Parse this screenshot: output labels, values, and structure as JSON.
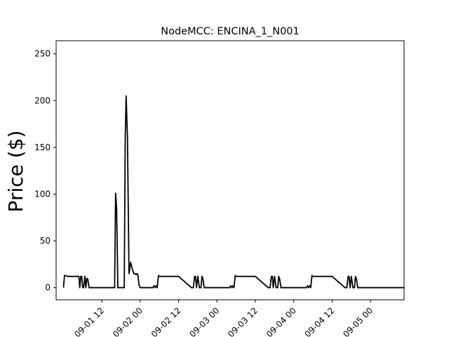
{
  "chart_data": {
    "type": "line",
    "title": "NodeMCC: ENCINA_1_N001",
    "xlabel": "",
    "ylabel": "Price ($)",
    "ylim": [
      -13,
      264
    ],
    "yticks": [
      0,
      50,
      100,
      150,
      200,
      250
    ],
    "xticks": [
      {
        "label": "09-01 12",
        "hour": 12
      },
      {
        "label": "09-02 00",
        "hour": 24
      },
      {
        "label": "09-02 12",
        "hour": 36
      },
      {
        "label": "09-03 00",
        "hour": 48
      },
      {
        "label": "09-03 12",
        "hour": 60
      },
      {
        "label": "09-04 00",
        "hour": 72
      },
      {
        "label": "09-04 12",
        "hour": 84
      },
      {
        "label": "09-05 00",
        "hour": 96
      }
    ],
    "xlim_hours": [
      -2.3,
      106.5
    ],
    "grid": false,
    "series": [
      {
        "color": "#000000",
        "hour": [
          0,
          0.3,
          1.5,
          3.5,
          4.8,
          5.1,
          5.4,
          5.7,
          6.0,
          6.3,
          6.7,
          7.0,
          7.3,
          7.6,
          8.0,
          12.0,
          16.0,
          16.3,
          16.6,
          17.0,
          17.3,
          17.6,
          18.0,
          18.5,
          19.0,
          19.3,
          19.6,
          20.0,
          20.5,
          21.0,
          21.5,
          22.0,
          22.3,
          22.6,
          23.0,
          23.3,
          23.6,
          24.0,
          25.0,
          26.0,
          26.5,
          27.0,
          28.0,
          28.3,
          28.7,
          29.0,
          29.3,
          29.7,
          30.0,
          30.5,
          31.0,
          32.0,
          36.0,
          40.0,
          40.3,
          40.6,
          41.0,
          41.3,
          41.6,
          42.0,
          42.5,
          43.0,
          43.3,
          43.6,
          44.0,
          44.5,
          45.0,
          45.5,
          46.0,
          46.3,
          46.6,
          47.0,
          47.3,
          47.6,
          48.0,
          49.0,
          50.0,
          50.5,
          51.0,
          52.0,
          52.3,
          52.7,
          53.0,
          53.3,
          53.7,
          54.0,
          54.5,
          55.0,
          56.0,
          60.0,
          64.0,
          64.3,
          64.6,
          65.0,
          65.3,
          65.6,
          66.0,
          66.5,
          67.0,
          67.3,
          67.6,
          68.0,
          68.5,
          69.0,
          69.5,
          70.0,
          70.3,
          70.6,
          71.0,
          71.3,
          71.6,
          72.0,
          73.0,
          74.0,
          74.5,
          75.0,
          76.0,
          76.3,
          76.7,
          77.0,
          77.3,
          77.7,
          78.0,
          78.5,
          79.0,
          80.0,
          84.0,
          88.0,
          88.3,
          88.6,
          89.0,
          89.3,
          89.6,
          90.0,
          90.5,
          91.0,
          91.3,
          91.6,
          92.0,
          92.5,
          93.0,
          93.5,
          94.0,
          94.3,
          94.6,
          95.0,
          95.3,
          95.6,
          96.0,
          97.0,
          98.0,
          98.5,
          99.0,
          99.5,
          100.0,
          100.5,
          101.0,
          101.3,
          101.6,
          102.0,
          102.5,
          103.0,
          104.5,
          105.5,
          105.8,
          106.2,
          106.5
        ],
        "value": [
          0,
          13,
          12,
          12,
          12,
          0,
          12,
          12,
          0,
          0,
          12,
          0,
          10,
          9,
          0,
          0,
          0,
          101,
          85,
          0,
          0,
          0,
          0,
          0,
          0,
          160,
          205,
          160,
          15,
          27,
          20,
          15,
          15,
          14,
          15,
          13,
          3,
          0,
          0,
          0,
          0,
          0,
          0,
          2,
          0,
          2,
          0,
          13,
          12,
          12,
          12,
          12,
          12,
          0,
          0,
          0,
          12,
          12,
          0,
          12,
          0,
          0,
          12,
          9,
          0,
          0,
          0,
          0,
          0,
          0,
          0,
          0,
          0,
          0,
          0,
          0,
          0,
          0,
          0,
          0,
          2,
          0,
          2,
          0,
          13,
          12,
          12,
          12,
          12,
          12,
          0,
          0,
          0,
          12,
          12,
          0,
          12,
          0,
          0,
          12,
          9,
          0,
          0,
          0,
          0,
          0,
          0,
          0,
          0,
          0,
          0,
          0,
          0,
          0,
          0,
          0,
          0,
          2,
          0,
          2,
          0,
          13,
          12,
          12,
          12,
          12,
          12,
          0,
          0,
          0,
          12,
          12,
          0,
          12,
          0,
          0,
          12,
          9,
          0,
          0,
          0,
          0,
          0,
          0,
          0,
          0,
          0,
          0,
          0,
          0,
          0,
          0,
          0,
          0,
          0,
          0,
          0,
          0,
          0,
          0,
          0,
          0,
          0,
          0,
          0,
          0,
          0
        ]
      }
    ]
  }
}
